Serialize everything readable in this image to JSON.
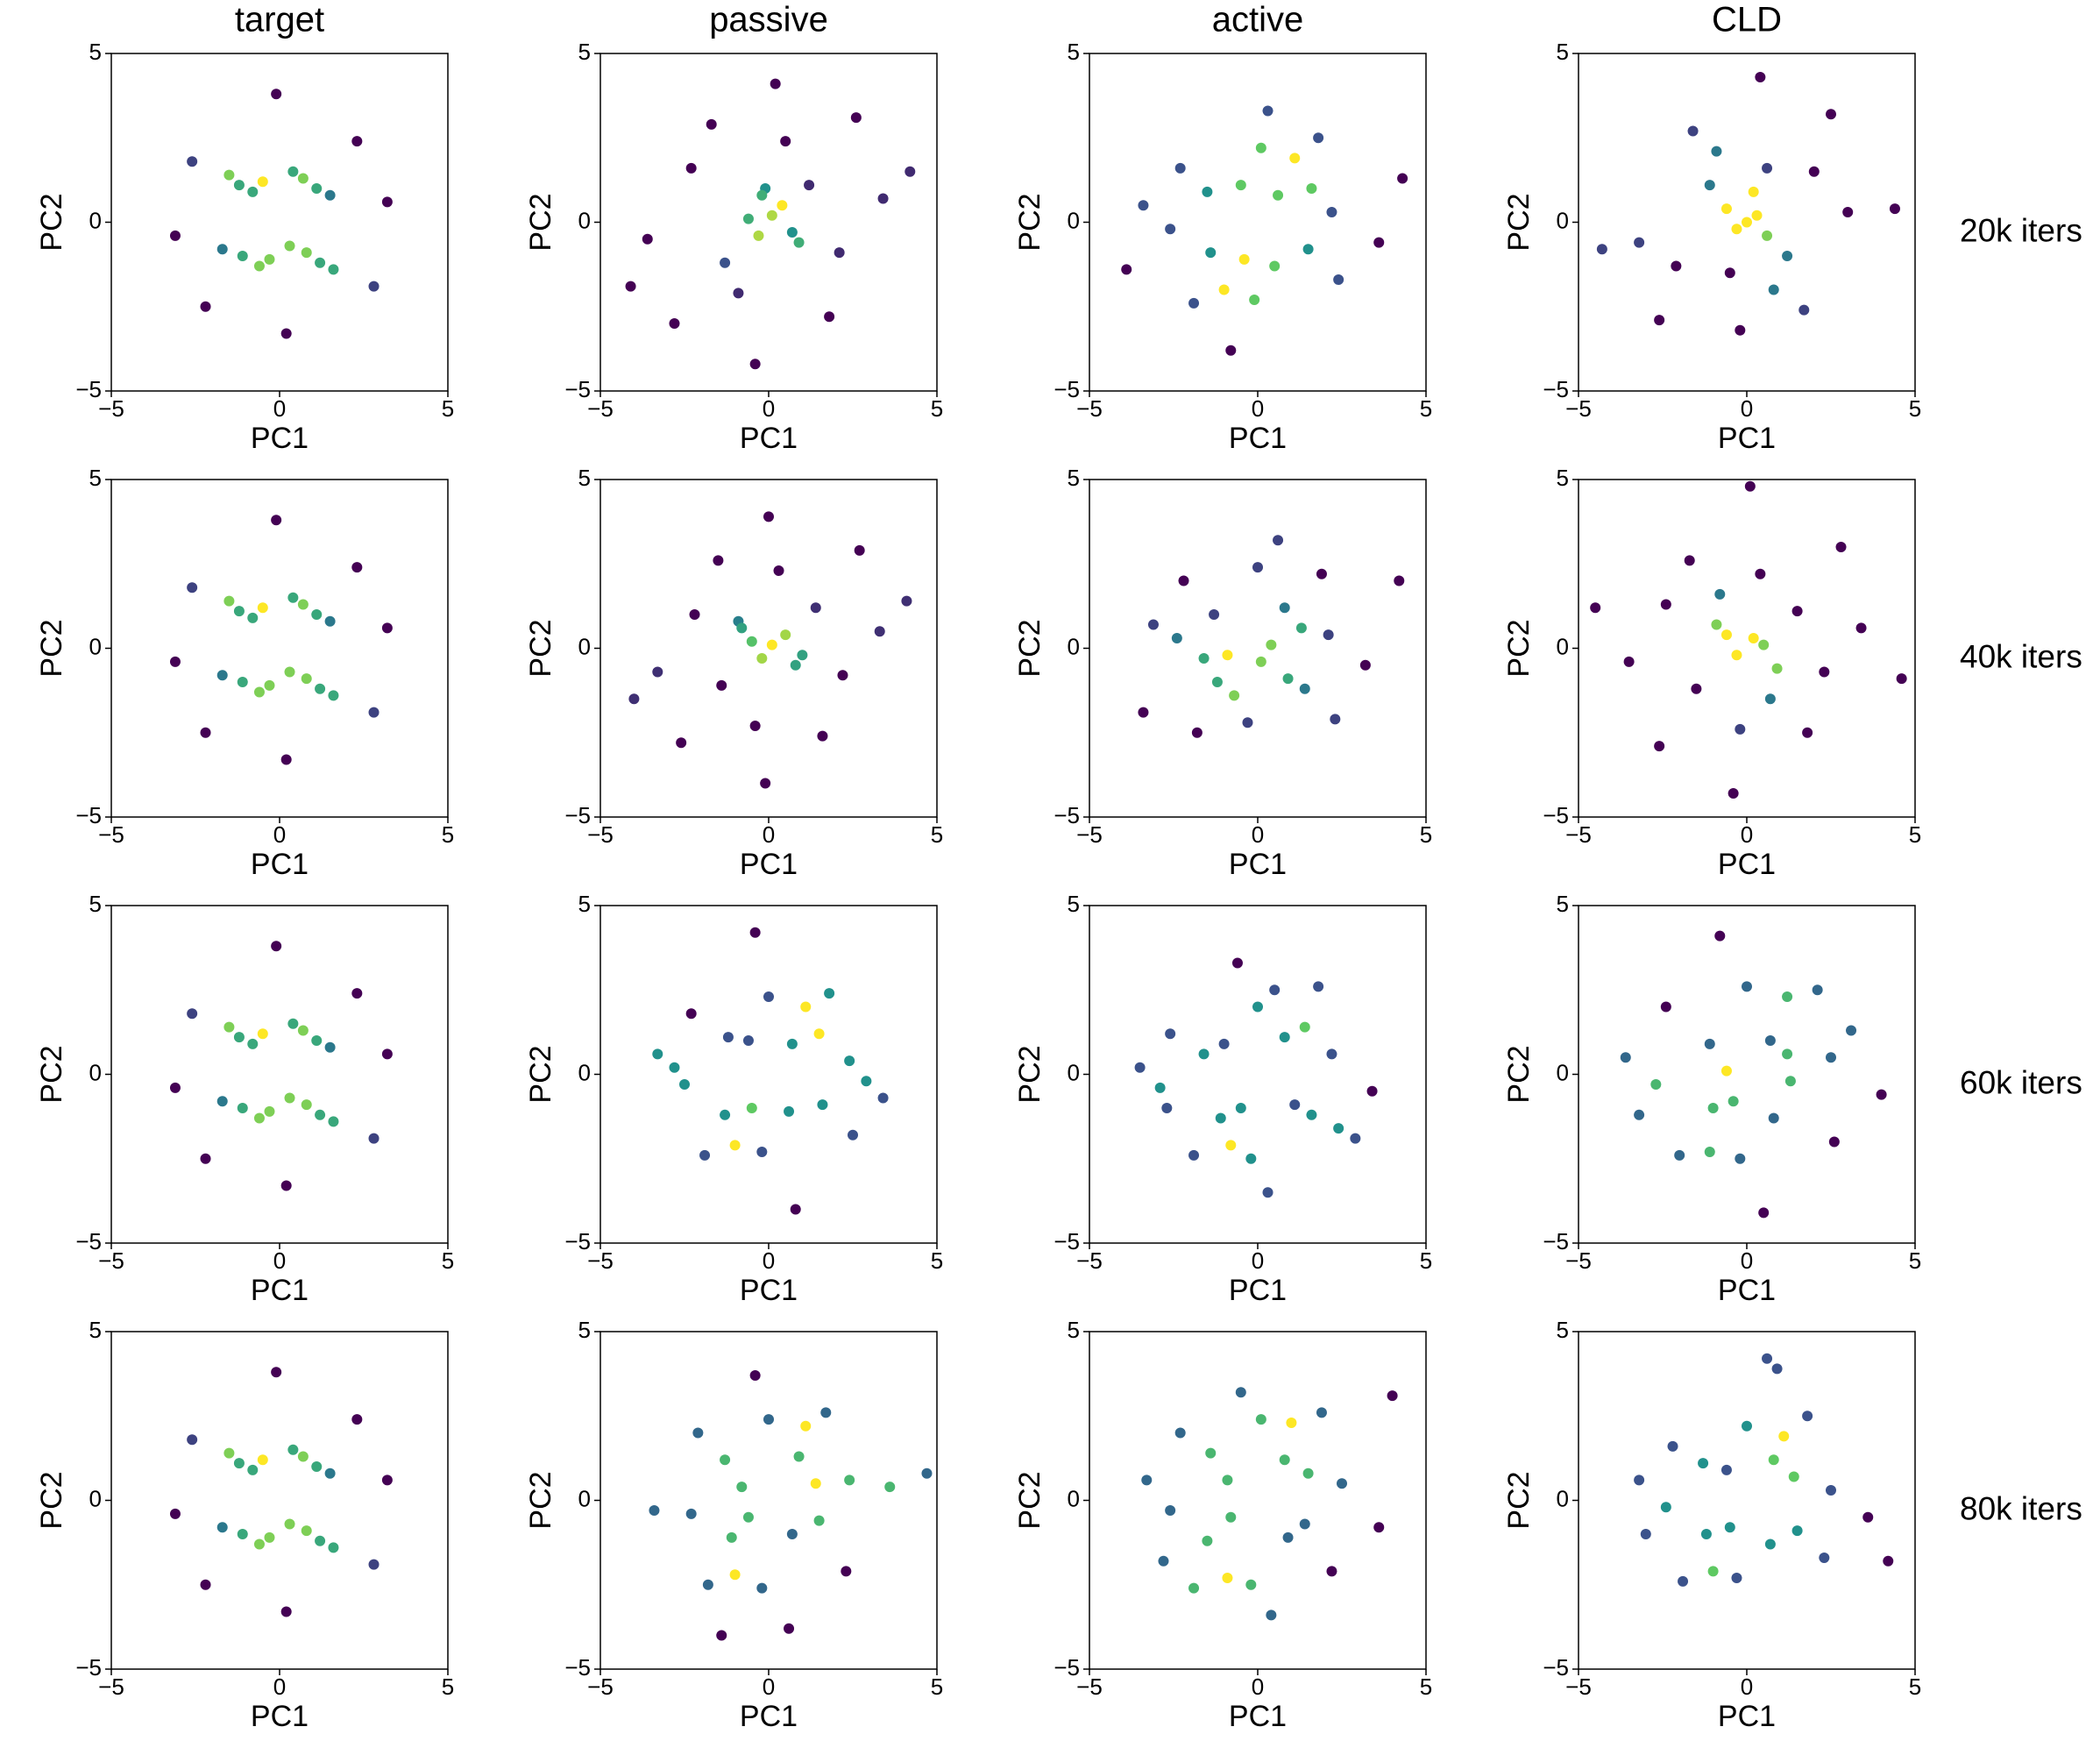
{
  "columns": [
    "target",
    "passive",
    "active",
    "CLD"
  ],
  "rows": [
    "20k iters",
    "40k iters",
    "60k iters",
    "80k iters"
  ],
  "chart_data": [
    {
      "type": "scatter",
      "colormap": "viridis",
      "xlabel": "PC1",
      "ylabel": "PC2",
      "xlim": [
        -5,
        5
      ],
      "ylim": [
        -5,
        5
      ],
      "xticks": [
        {
          "value": -5,
          "label": "−5"
        },
        0,
        5
      ],
      "yticks": [
        {
          "value": -5,
          "label": "−5"
        },
        0,
        5
      ],
      "x": [
        -1.2,
        -0.8,
        -1.5,
        -0.5,
        1.1,
        0.7,
        1.5,
        0.4,
        -1.1,
        -0.6,
        -1.7,
        -0.3,
        1.2,
        0.8,
        1.6,
        0.3,
        -2.6,
        2.8,
        -3.1,
        3.2,
        -0.1,
        0.2,
        -2.2,
        2.3
      ],
      "y": [
        1.1,
        0.9,
        1.4,
        1.2,
        1.0,
        1.3,
        0.8,
        1.5,
        -1.0,
        -1.3,
        -0.8,
        -1.1,
        -1.2,
        -0.9,
        -1.4,
        -0.7,
        1.8,
        -1.9,
        -0.4,
        0.6,
        3.8,
        -3.3,
        -2.5,
        2.4
      ]
    },
    {
      "type": "scatter",
      "colormap": "viridis",
      "xlabel": "PC1",
      "ylabel": "PC2",
      "xlim": [
        -5,
        5
      ],
      "ylim": [
        -5,
        5
      ],
      "xticks": [
        {
          "value": -5,
          "label": "−5"
        },
        0,
        5
      ],
      "yticks": [
        {
          "value": -5,
          "label": "−5"
        },
        0,
        5
      ],
      "x": [
        0.1,
        -0.3,
        0.4,
        -0.6,
        0.7,
        -0.2,
        1.2,
        -1.3,
        2.1,
        -2.3,
        0.5,
        -0.9,
        3.4,
        -3.6,
        1.8,
        -1.7,
        0.2,
        -0.4,
        4.2,
        -4.1,
        2.6,
        -2.8,
        0.9,
        -0.1
      ],
      "y": [
        0.2,
        -0.4,
        0.5,
        0.1,
        -0.3,
        0.8,
        1.1,
        -1.2,
        -0.9,
        1.6,
        2.4,
        -2.1,
        0.7,
        -0.5,
        -2.8,
        2.9,
        4.1,
        -4.2,
        1.5,
        -1.9,
        3.1,
        -3.0,
        -0.6,
        1.0
      ]
    },
    {
      "type": "scatter",
      "colormap": "viridis",
      "xlabel": "PC1",
      "ylabel": "PC2",
      "xlim": [
        -5,
        5
      ],
      "ylim": [
        -5,
        5
      ],
      "xticks": [
        {
          "value": -5,
          "label": "−5"
        },
        0,
        5
      ],
      "yticks": [
        {
          "value": -5,
          "label": "−5"
        },
        0,
        5
      ],
      "x": [
        -1.5,
        -0.5,
        0.6,
        1.6,
        -1.4,
        -0.4,
        0.5,
        1.5,
        -2.3,
        2.4,
        -2.6,
        2.2,
        0.1,
        -1.0,
        1.1,
        -0.1,
        -3.4,
        3.6,
        -1.9,
        1.8,
        4.3,
        -3.9,
        0.3,
        -0.8
      ],
      "y": [
        0.9,
        1.1,
        0.8,
        1.0,
        -0.9,
        -1.1,
        -1.3,
        -0.8,
        1.6,
        -1.7,
        -0.2,
        0.3,
        2.2,
        -2.0,
        1.9,
        -2.3,
        0.5,
        -0.6,
        -2.4,
        2.5,
        1.3,
        -1.4,
        3.3,
        -3.8
      ]
    },
    {
      "type": "scatter",
      "colormap": "viridis",
      "xlabel": "PC1",
      "ylabel": "PC2",
      "xlim": [
        -5,
        5
      ],
      "ylim": [
        -5,
        5
      ],
      "xticks": [
        {
          "value": -5,
          "label": "−5"
        },
        0,
        5
      ],
      "yticks": [
        {
          "value": -5,
          "label": "−5"
        },
        0,
        5
      ],
      "x": [
        0.0,
        0.3,
        -0.3,
        0.6,
        -0.6,
        0.2,
        1.2,
        -1.1,
        2.0,
        -2.1,
        0.8,
        -0.9,
        3.0,
        -3.2,
        1.7,
        -1.6,
        0.4,
        -0.2,
        4.4,
        -4.3,
        2.5,
        -2.6,
        0.6,
        -0.5
      ],
      "y": [
        0.0,
        0.2,
        -0.2,
        -0.4,
        0.4,
        0.9,
        -1.0,
        1.1,
        1.5,
        -1.3,
        -2.0,
        2.1,
        0.3,
        -0.6,
        -2.6,
        2.7,
        4.3,
        -3.2,
        0.4,
        -0.8,
        3.2,
        -2.9,
        1.6,
        -1.5
      ]
    },
    {
      "type": "scatter",
      "colormap": "viridis",
      "xlabel": "PC1",
      "ylabel": "PC2",
      "xlim": [
        -5,
        5
      ],
      "ylim": [
        -5,
        5
      ],
      "xticks": [
        {
          "value": -5,
          "label": "−5"
        },
        0,
        5
      ],
      "yticks": [
        {
          "value": -5,
          "label": "−5"
        },
        0,
        5
      ],
      "x": [
        -1.2,
        -0.8,
        -1.5,
        -0.5,
        1.1,
        0.7,
        1.5,
        0.4,
        -1.1,
        -0.6,
        -1.7,
        -0.3,
        1.2,
        0.8,
        1.6,
        0.3,
        -2.6,
        2.8,
        -3.1,
        3.2,
        -0.1,
        0.2,
        -2.2,
        2.3
      ],
      "y": [
        1.1,
        0.9,
        1.4,
        1.2,
        1.0,
        1.3,
        0.8,
        1.5,
        -1.0,
        -1.3,
        -0.8,
        -1.1,
        -1.2,
        -0.9,
        -1.4,
        -0.7,
        1.8,
        -1.9,
        -0.4,
        0.6,
        3.8,
        -3.3,
        -2.5,
        2.4
      ]
    },
    {
      "type": "scatter",
      "colormap": "viridis",
      "xlabel": "PC1",
      "ylabel": "PC2",
      "xlim": [
        -5,
        5
      ],
      "ylim": [
        -5,
        5
      ],
      "xticks": [
        {
          "value": -5,
          "label": "−5"
        },
        0,
        5
      ],
      "yticks": [
        {
          "value": -5,
          "label": "−5"
        },
        0,
        5
      ],
      "x": [
        0.1,
        -0.2,
        0.5,
        -0.5,
        0.8,
        -0.8,
        1.4,
        -1.4,
        2.2,
        -2.2,
        0.3,
        -0.4,
        3.3,
        -3.3,
        1.6,
        -1.5,
        0.0,
        -0.1,
        4.1,
        -4.0,
        2.7,
        -2.6,
        1.0,
        -0.9
      ],
      "y": [
        0.1,
        -0.3,
        0.4,
        0.2,
        -0.5,
        0.6,
        1.2,
        -1.1,
        -0.8,
        1.0,
        2.3,
        -2.3,
        0.5,
        -0.7,
        -2.6,
        2.6,
        3.9,
        -4.0,
        1.4,
        -1.5,
        2.9,
        -2.8,
        -0.2,
        0.8
      ]
    },
    {
      "type": "scatter",
      "colormap": "viridis",
      "xlabel": "PC1",
      "ylabel": "PC2",
      "xlim": [
        -5,
        5
      ],
      "ylim": [
        -5,
        5
      ],
      "xticks": [
        {
          "value": -5,
          "label": "−5"
        },
        0,
        5
      ],
      "yticks": [
        {
          "value": -5,
          "label": "−5"
        },
        0,
        5
      ],
      "x": [
        -1.3,
        -0.9,
        0.8,
        1.3,
        -1.2,
        -0.7,
        0.9,
        1.4,
        -2.2,
        2.3,
        -2.4,
        2.1,
        0.0,
        -0.3,
        0.4,
        0.1,
        -3.1,
        3.2,
        -1.8,
        1.9,
        4.2,
        -3.4,
        0.6,
        -1.6
      ],
      "y": [
        1.0,
        -0.2,
        1.2,
        0.6,
        -1.0,
        -1.4,
        -0.9,
        -1.2,
        2.0,
        -2.1,
        0.3,
        0.4,
        2.4,
        -2.2,
        0.1,
        -0.4,
        0.7,
        -0.5,
        -2.5,
        2.2,
        2.0,
        -1.9,
        3.2,
        -0.3
      ]
    },
    {
      "type": "scatter",
      "colormap": "viridis",
      "xlabel": "PC1",
      "ylabel": "PC2",
      "xlim": [
        -5,
        5
      ],
      "ylim": [
        -5,
        5
      ],
      "xticks": [
        {
          "value": -5,
          "label": "−5"
        },
        0,
        5
      ],
      "yticks": [
        {
          "value": -5,
          "label": "−5"
        },
        0,
        5
      ],
      "x": [
        0.2,
        -0.3,
        0.5,
        -0.6,
        0.9,
        -0.9,
        1.5,
        -1.5,
        2.3,
        -2.4,
        0.4,
        -0.2,
        3.4,
        -3.5,
        1.8,
        -1.7,
        0.1,
        -0.4,
        4.6,
        -4.5,
        2.8,
        -2.6,
        0.7,
        -0.8
      ],
      "y": [
        0.3,
        -0.2,
        0.1,
        0.4,
        -0.6,
        0.7,
        1.1,
        -1.2,
        -0.7,
        1.3,
        2.2,
        -2.4,
        0.6,
        -0.4,
        -2.5,
        2.6,
        4.8,
        -4.3,
        -0.9,
        1.2,
        3.0,
        -2.9,
        -1.5,
        1.6
      ]
    },
    {
      "type": "scatter",
      "colormap": "viridis",
      "xlabel": "PC1",
      "ylabel": "PC2",
      "xlim": [
        -5,
        5
      ],
      "ylim": [
        -5,
        5
      ],
      "xticks": [
        {
          "value": -5,
          "label": "−5"
        },
        0,
        5
      ],
      "yticks": [
        {
          "value": -5,
          "label": "−5"
        },
        0,
        5
      ],
      "x": [
        -1.2,
        -0.8,
        -1.5,
        -0.5,
        1.1,
        0.7,
        1.5,
        0.4,
        -1.1,
        -0.6,
        -1.7,
        -0.3,
        1.2,
        0.8,
        1.6,
        0.3,
        -2.6,
        2.8,
        -3.1,
        3.2,
        -0.1,
        0.2,
        -2.2,
        2.3
      ],
      "y": [
        1.1,
        0.9,
        1.4,
        1.2,
        1.0,
        1.3,
        0.8,
        1.5,
        -1.0,
        -1.3,
        -0.8,
        -1.1,
        -1.2,
        -0.9,
        -1.4,
        -0.7,
        1.8,
        -1.9,
        -0.4,
        0.6,
        3.8,
        -3.3,
        -2.5,
        2.4
      ]
    },
    {
      "type": "scatter",
      "colormap": "viridis",
      "xlabel": "PC1",
      "ylabel": "PC2",
      "xlim": [
        -5,
        5
      ],
      "ylim": [
        -5,
        5
      ],
      "xticks": [
        {
          "value": -5,
          "label": "−5"
        },
        0,
        5
      ],
      "yticks": [
        {
          "value": -5,
          "label": "−5"
        },
        0,
        5
      ],
      "x": [
        -1.2,
        -0.6,
        0.7,
        1.5,
        -1.3,
        -0.5,
        0.6,
        1.6,
        -2.3,
        2.5,
        -2.5,
        2.4,
        0.0,
        -1.0,
        1.1,
        -0.2,
        -3.3,
        3.4,
        -1.9,
        1.8,
        0.8,
        -0.4,
        2.9,
        -2.8
      ],
      "y": [
        1.1,
        1.0,
        0.9,
        1.2,
        -1.2,
        -1.0,
        -1.1,
        -0.9,
        1.8,
        -1.8,
        -0.3,
        0.4,
        2.3,
        -2.1,
        2.0,
        -2.3,
        0.6,
        -0.7,
        -2.4,
        2.4,
        -4.0,
        4.2,
        -0.2,
        0.2
      ]
    },
    {
      "type": "scatter",
      "colormap": "viridis",
      "xlabel": "PC1",
      "ylabel": "PC2",
      "xlim": [
        -5,
        5
      ],
      "ylim": [
        -5,
        5
      ],
      "xticks": [
        {
          "value": -5,
          "label": "−5"
        },
        0,
        5
      ],
      "yticks": [
        {
          "value": -5,
          "label": "−5"
        },
        0,
        5
      ],
      "x": [
        -1.6,
        -1.0,
        0.8,
        1.4,
        -1.1,
        -0.5,
        1.1,
        1.6,
        -2.6,
        2.4,
        -2.9,
        2.2,
        0.0,
        -0.8,
        0.5,
        -0.2,
        -3.5,
        3.4,
        -1.9,
        1.8,
        -0.6,
        0.3,
        2.9,
        -2.7
      ],
      "y": [
        0.6,
        0.9,
        1.1,
        1.4,
        -1.3,
        -1.0,
        -0.9,
        -1.2,
        1.2,
        -1.6,
        -0.4,
        0.6,
        2.0,
        -2.1,
        2.5,
        -2.5,
        0.2,
        -0.5,
        -2.4,
        2.6,
        3.3,
        -3.5,
        -1.9,
        -1.0
      ]
    },
    {
      "type": "scatter",
      "colormap": "viridis",
      "xlabel": "PC1",
      "ylabel": "PC2",
      "xlim": [
        -5,
        5
      ],
      "ylim": [
        -5,
        5
      ],
      "xticks": [
        {
          "value": -5,
          "label": "−5"
        },
        0,
        5
      ],
      "yticks": [
        {
          "value": -5,
          "label": "−5"
        },
        0,
        5
      ],
      "x": [
        -1.1,
        -0.6,
        0.7,
        1.2,
        -1.0,
        -0.4,
        0.8,
        1.3,
        -2.4,
        2.6,
        -2.7,
        2.5,
        0.0,
        -1.1,
        1.2,
        -0.2,
        -3.6,
        4.0,
        -2.0,
        2.1,
        -0.8,
        0.5,
        3.1,
        -3.2
      ],
      "y": [
        0.9,
        0.1,
        1.0,
        0.6,
        -1.0,
        -0.8,
        -1.3,
        -0.2,
        2.0,
        -2.0,
        -0.3,
        0.5,
        2.6,
        -2.3,
        2.3,
        -2.5,
        0.5,
        -0.6,
        -2.4,
        2.5,
        4.1,
        -4.1,
        1.3,
        -1.2
      ]
    },
    {
      "type": "scatter",
      "colormap": "viridis",
      "xlabel": "PC1",
      "ylabel": "PC2",
      "xlim": [
        -5,
        5
      ],
      "ylim": [
        -5,
        5
      ],
      "xticks": [
        {
          "value": -5,
          "label": "−5"
        },
        0,
        5
      ],
      "yticks": [
        {
          "value": -5,
          "label": "−5"
        },
        0,
        5
      ],
      "x": [
        -1.2,
        -0.8,
        -1.5,
        -0.5,
        1.1,
        0.7,
        1.5,
        0.4,
        -1.1,
        -0.6,
        -1.7,
        -0.3,
        1.2,
        0.8,
        1.6,
        0.3,
        -2.6,
        2.8,
        -3.1,
        3.2,
        -0.1,
        0.2,
        -2.2,
        2.3
      ],
      "y": [
        1.1,
        0.9,
        1.4,
        1.2,
        1.0,
        1.3,
        0.8,
        1.5,
        -1.0,
        -1.3,
        -0.8,
        -1.1,
        -1.2,
        -0.9,
        -1.4,
        -0.7,
        1.8,
        -1.9,
        -0.4,
        0.6,
        3.8,
        -3.3,
        -2.5,
        2.4
      ]
    },
    {
      "type": "scatter",
      "colormap": "viridis",
      "xlabel": "PC1",
      "ylabel": "PC2",
      "xlim": [
        -5,
        5
      ],
      "ylim": [
        -5,
        5
      ],
      "xticks": [
        {
          "value": -5,
          "label": "−5"
        },
        0,
        5
      ],
      "yticks": [
        {
          "value": -5,
          "label": "−5"
        },
        0,
        5
      ],
      "x": [
        -1.3,
        -0.8,
        0.9,
        1.4,
        -1.1,
        -0.6,
        0.7,
        1.5,
        -2.1,
        2.3,
        -2.3,
        2.4,
        0.0,
        -1.0,
        1.1,
        -0.2,
        -3.4,
        3.6,
        -1.8,
        1.7,
        -0.4,
        0.6,
        4.7,
        -1.4
      ],
      "y": [
        1.2,
        0.4,
        1.3,
        0.5,
        -1.1,
        -0.5,
        -1.0,
        -0.6,
        2.0,
        -2.1,
        -0.4,
        0.6,
        2.4,
        -2.2,
        2.2,
        -2.6,
        -0.3,
        0.4,
        -2.5,
        2.6,
        3.7,
        -3.8,
        0.8,
        -4.0
      ]
    },
    {
      "type": "scatter",
      "colormap": "viridis",
      "xlabel": "PC1",
      "ylabel": "PC2",
      "xlim": [
        -5,
        5
      ],
      "ylim": [
        -5,
        5
      ],
      "xticks": [
        {
          "value": -5,
          "label": "−5"
        },
        0,
        5
      ],
      "yticks": [
        {
          "value": -5,
          "label": "−5"
        },
        0,
        5
      ],
      "x": [
        -1.4,
        -0.9,
        0.8,
        1.5,
        -1.5,
        -0.8,
        0.9,
        1.4,
        -2.3,
        2.2,
        -2.6,
        2.5,
        0.1,
        -0.9,
        1.0,
        -0.2,
        -3.3,
        3.6,
        -1.9,
        1.9,
        -0.5,
        0.4,
        4.0,
        -2.8
      ],
      "y": [
        1.4,
        0.6,
        1.2,
        0.8,
        -1.2,
        -0.5,
        -1.1,
        -0.7,
        2.0,
        -2.1,
        -0.3,
        0.5,
        2.4,
        -2.3,
        2.3,
        -2.5,
        0.6,
        -0.8,
        -2.6,
        2.6,
        3.2,
        -3.4,
        3.1,
        -1.8
      ]
    },
    {
      "type": "scatter",
      "colormap": "viridis",
      "xlabel": "PC1",
      "ylabel": "PC2",
      "xlim": [
        -5,
        5
      ],
      "ylim": [
        -5,
        5
      ],
      "xticks": [
        {
          "value": -5,
          "label": "−5"
        },
        0,
        5
      ],
      "yticks": [
        {
          "value": -5,
          "label": "−5"
        },
        0,
        5
      ],
      "x": [
        -1.3,
        -0.6,
        0.8,
        1.4,
        -1.2,
        -0.5,
        0.7,
        1.5,
        -2.2,
        2.3,
        -2.4,
        2.5,
        0.0,
        -1.0,
        1.1,
        -0.3,
        -3.2,
        3.6,
        -1.9,
        1.8,
        0.6,
        0.9,
        4.2,
        -3.0
      ],
      "y": [
        1.1,
        0.9,
        1.2,
        0.7,
        -1.0,
        -0.8,
        -1.3,
        -0.9,
        1.6,
        -1.7,
        -0.2,
        0.3,
        2.2,
        -2.1,
        1.9,
        -2.3,
        0.6,
        -0.5,
        -2.4,
        2.5,
        4.2,
        3.9,
        -1.8,
        -1.0
      ]
    }
  ]
}
